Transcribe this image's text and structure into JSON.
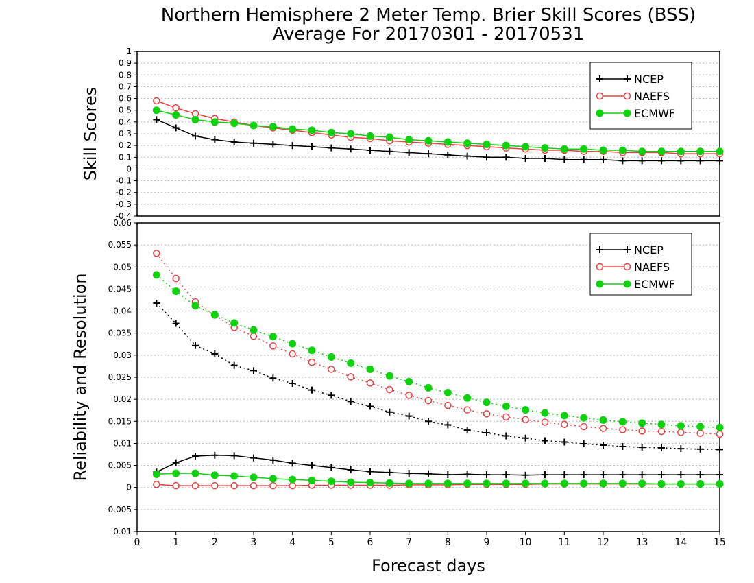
{
  "title": {
    "line1": "Northern Hemisphere 2 Meter Temp. Brier Skill Scores (BSS)",
    "line2": "Average For 20170301 - 20170531"
  },
  "xlabel": "Forecast days",
  "colors": {
    "NCEP": "#000000",
    "NAEFS": "#e84040",
    "ECMWF": "#10d010"
  },
  "chart_data": [
    {
      "type": "line",
      "ylabel": "Skill Scores",
      "xlim": [
        0,
        15
      ],
      "ylim": [
        -0.4,
        1
      ],
      "yticks": [
        "-0.4",
        "-0.3",
        "-0.2",
        "-0.1",
        "0",
        "0.1",
        "0.2",
        "0.3",
        "0.4",
        "0.5",
        "0.6",
        "0.7",
        "0.8",
        "0.9",
        "1"
      ],
      "grid": true,
      "legend_position": "top-right",
      "x": [
        0.5,
        1,
        1.5,
        2,
        2.5,
        3,
        3.5,
        4,
        4.5,
        5,
        5.5,
        6,
        6.5,
        7,
        7.5,
        8,
        8.5,
        9,
        9.5,
        10,
        10.5,
        11,
        11.5,
        12,
        12.5,
        13,
        13.5,
        14,
        14.5,
        15
      ],
      "series": [
        {
          "name": "NCEP",
          "style": "solid",
          "marker": "plus",
          "values": [
            0.42,
            0.35,
            0.28,
            0.25,
            0.23,
            0.22,
            0.21,
            0.2,
            0.19,
            0.18,
            0.17,
            0.16,
            0.15,
            0.14,
            0.13,
            0.12,
            0.11,
            0.1,
            0.1,
            0.09,
            0.09,
            0.08,
            0.08,
            0.08,
            0.07,
            0.07,
            0.07,
            0.07,
            0.07,
            0.07
          ]
        },
        {
          "name": "NAEFS",
          "style": "solid",
          "marker": "open-circle",
          "values": [
            0.58,
            0.52,
            0.47,
            0.43,
            0.4,
            0.37,
            0.35,
            0.33,
            0.31,
            0.29,
            0.27,
            0.26,
            0.24,
            0.23,
            0.22,
            0.21,
            0.2,
            0.19,
            0.18,
            0.17,
            0.16,
            0.16,
            0.15,
            0.15,
            0.14,
            0.14,
            0.14,
            0.13,
            0.13,
            0.13
          ]
        },
        {
          "name": "ECMWF",
          "style": "solid",
          "marker": "filled-circle",
          "values": [
            0.5,
            0.46,
            0.42,
            0.4,
            0.39,
            0.37,
            0.36,
            0.34,
            0.33,
            0.31,
            0.3,
            0.28,
            0.27,
            0.25,
            0.24,
            0.23,
            0.22,
            0.21,
            0.2,
            0.19,
            0.18,
            0.17,
            0.17,
            0.16,
            0.16,
            0.15,
            0.15,
            0.15,
            0.15,
            0.15
          ]
        }
      ]
    },
    {
      "type": "line",
      "ylabel": "Reliability and Resolution",
      "xlim": [
        0,
        15
      ],
      "ylim": [
        -0.01,
        0.06
      ],
      "yticks": [
        "-0.01",
        "-0.005",
        "0",
        "0.005",
        "0.01",
        "0.015",
        "0.02",
        "0.025",
        "0.03",
        "0.035",
        "0.04",
        "0.045",
        "0.05",
        "0.055",
        "0.06"
      ],
      "xticks": [
        "0",
        "1",
        "2",
        "3",
        "4",
        "5",
        "6",
        "7",
        "8",
        "9",
        "10",
        "11",
        "12",
        "13",
        "14",
        "15"
      ],
      "grid": true,
      "legend_position": "top-right",
      "x": [
        0.5,
        1,
        1.5,
        2,
        2.5,
        3,
        3.5,
        4,
        4.5,
        5,
        5.5,
        6,
        6.5,
        7,
        7.5,
        8,
        8.5,
        9,
        9.5,
        10,
        10.5,
        11,
        11.5,
        12,
        12.5,
        13,
        13.5,
        14,
        14.5,
        15
      ],
      "series": [
        {
          "name": "NCEP",
          "group": "resolution",
          "style": "dotted",
          "marker": "plus",
          "values": [
            0.0418,
            0.0372,
            0.0322,
            0.0303,
            0.0277,
            0.0265,
            0.0248,
            0.0236,
            0.0221,
            0.0209,
            0.0195,
            0.0184,
            0.0171,
            0.0162,
            0.015,
            0.0142,
            0.013,
            0.0124,
            0.0117,
            0.0112,
            0.0106,
            0.0103,
            0.0099,
            0.0096,
            0.0093,
            0.0091,
            0.009,
            0.0088,
            0.0087,
            0.0086
          ]
        },
        {
          "name": "NAEFS",
          "group": "resolution",
          "style": "dotted",
          "marker": "open-circle",
          "values": [
            0.0531,
            0.0474,
            0.0421,
            0.0391,
            0.0363,
            0.0343,
            0.0321,
            0.0303,
            0.0284,
            0.0268,
            0.0251,
            0.0237,
            0.0222,
            0.0209,
            0.0197,
            0.0186,
            0.0176,
            0.0167,
            0.016,
            0.0154,
            0.0148,
            0.0143,
            0.0138,
            0.0134,
            0.0131,
            0.0128,
            0.0127,
            0.0125,
            0.0123,
            0.0121
          ]
        },
        {
          "name": "ECMWF",
          "group": "resolution",
          "style": "dotted",
          "marker": "filled-circle",
          "values": [
            0.0482,
            0.0445,
            0.0412,
            0.0392,
            0.0373,
            0.0357,
            0.0342,
            0.0326,
            0.0311,
            0.0296,
            0.0282,
            0.0268,
            0.0253,
            0.024,
            0.0226,
            0.0215,
            0.0203,
            0.0193,
            0.0184,
            0.0176,
            0.0169,
            0.0163,
            0.0158,
            0.0153,
            0.0149,
            0.0146,
            0.0143,
            0.014,
            0.0138,
            0.0136
          ]
        },
        {
          "name": "NCEP",
          "group": "reliability",
          "style": "solid",
          "marker": "plus",
          "values": [
            0.0035,
            0.0056,
            0.0071,
            0.0073,
            0.0072,
            0.0067,
            0.0062,
            0.0055,
            0.005,
            0.0045,
            0.004,
            0.0036,
            0.0034,
            0.0032,
            0.0031,
            0.0029,
            0.003,
            0.0029,
            0.0029,
            0.0028,
            0.0029,
            0.0029,
            0.0029,
            0.0029,
            0.0029,
            0.0029,
            0.0029,
            0.0029,
            0.0029,
            0.0029
          ]
        },
        {
          "name": "NAEFS",
          "group": "reliability",
          "style": "solid",
          "marker": "open-circle",
          "values": [
            0.0007,
            0.0004,
            0.0004,
            0.0004,
            0.0004,
            0.0004,
            0.0004,
            0.0004,
            0.0005,
            0.0005,
            0.0005,
            0.0005,
            0.0005,
            0.0006,
            0.0006,
            0.0006,
            0.0007,
            0.0007,
            0.0007,
            0.0007,
            0.0008,
            0.0008,
            0.0008,
            0.0008,
            0.0008,
            0.0008,
            0.0008,
            0.0008,
            0.0008,
            0.0008
          ]
        },
        {
          "name": "ECMWF",
          "group": "reliability",
          "style": "solid",
          "marker": "filled-circle",
          "values": [
            0.003,
            0.0032,
            0.0032,
            0.0028,
            0.0026,
            0.0023,
            0.002,
            0.0018,
            0.0016,
            0.0014,
            0.0012,
            0.0011,
            0.001,
            0.0009,
            0.0009,
            0.0009,
            0.0009,
            0.0009,
            0.0009,
            0.0009,
            0.0009,
            0.0009,
            0.0009,
            0.0009,
            0.0009,
            0.0009,
            0.0008,
            0.0008,
            0.0008,
            0.0008
          ]
        }
      ]
    }
  ]
}
